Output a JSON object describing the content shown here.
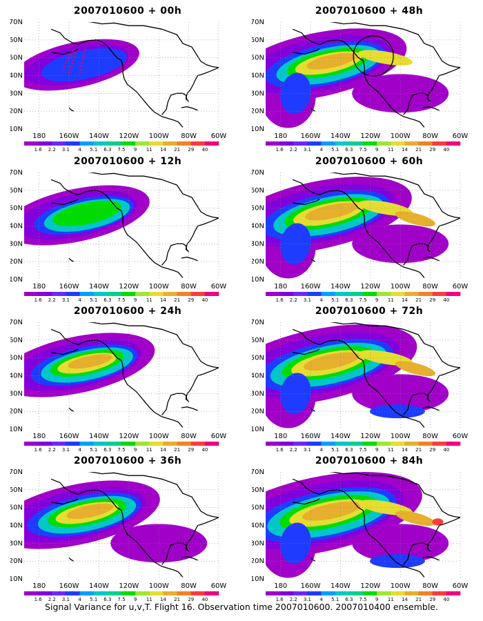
{
  "caption": "Signal Variance for u,v,T. Flight 16. Observation time 2007010600. 2007010400 ensemble.",
  "lat_labels": [
    "70N",
    "60N",
    "50N",
    "40N",
    "30N",
    "20N",
    "10N"
  ],
  "lon_labels": [
    "180",
    "160W",
    "140W",
    "120W",
    "100W",
    "80W",
    "60W"
  ],
  "colorbar_labels": [
    "1.6",
    "2.2",
    "3.1",
    "4",
    "5.1",
    "6.3",
    "7.5",
    "9",
    "11",
    "14",
    "21",
    "29",
    "40"
  ],
  "colorbar_colors": [
    "#a000c8",
    "#8200dc",
    "#6e28ff",
    "#1e3cff",
    "#00a0ff",
    "#00c8c8",
    "#00d28c",
    "#00dc00",
    "#a0e632",
    "#e6dc32",
    "#e6af2d",
    "#f08228",
    "#fa3c3c",
    "#f00082"
  ],
  "panels": [
    {
      "title": "2007010600 + 00h",
      "level": 1,
      "obs_region": "dotted"
    },
    {
      "title": "2007010600 + 48h",
      "level": 6,
      "obs_region": "circle"
    },
    {
      "title": "2007010600 + 12h",
      "level": 3,
      "obs_region": ""
    },
    {
      "title": "2007010600 + 60h",
      "level": 7,
      "obs_region": ""
    },
    {
      "title": "2007010600 + 24h",
      "level": 4,
      "obs_region": ""
    },
    {
      "title": "2007010600 + 72h",
      "level": 8,
      "obs_region": ""
    },
    {
      "title": "2007010600 + 36h",
      "level": 5,
      "obs_region": ""
    },
    {
      "title": "2007010600 + 84h",
      "level": 9,
      "obs_region": ""
    }
  ]
}
